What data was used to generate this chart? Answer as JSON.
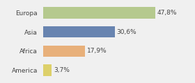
{
  "categories": [
    "Europa",
    "Asia",
    "Africa",
    "America"
  ],
  "values": [
    47.8,
    30.6,
    17.9,
    3.7
  ],
  "labels": [
    "47,8%",
    "30,6%",
    "17,9%",
    "3,7%"
  ],
  "colors": [
    "#b5c98e",
    "#6884b0",
    "#e8b07a",
    "#ddd06a"
  ],
  "background_color": "#f0f0f0",
  "xlim": [
    0,
    58
  ],
  "label_fontsize": 6.5,
  "tick_fontsize": 6.5,
  "bar_height": 0.6
}
